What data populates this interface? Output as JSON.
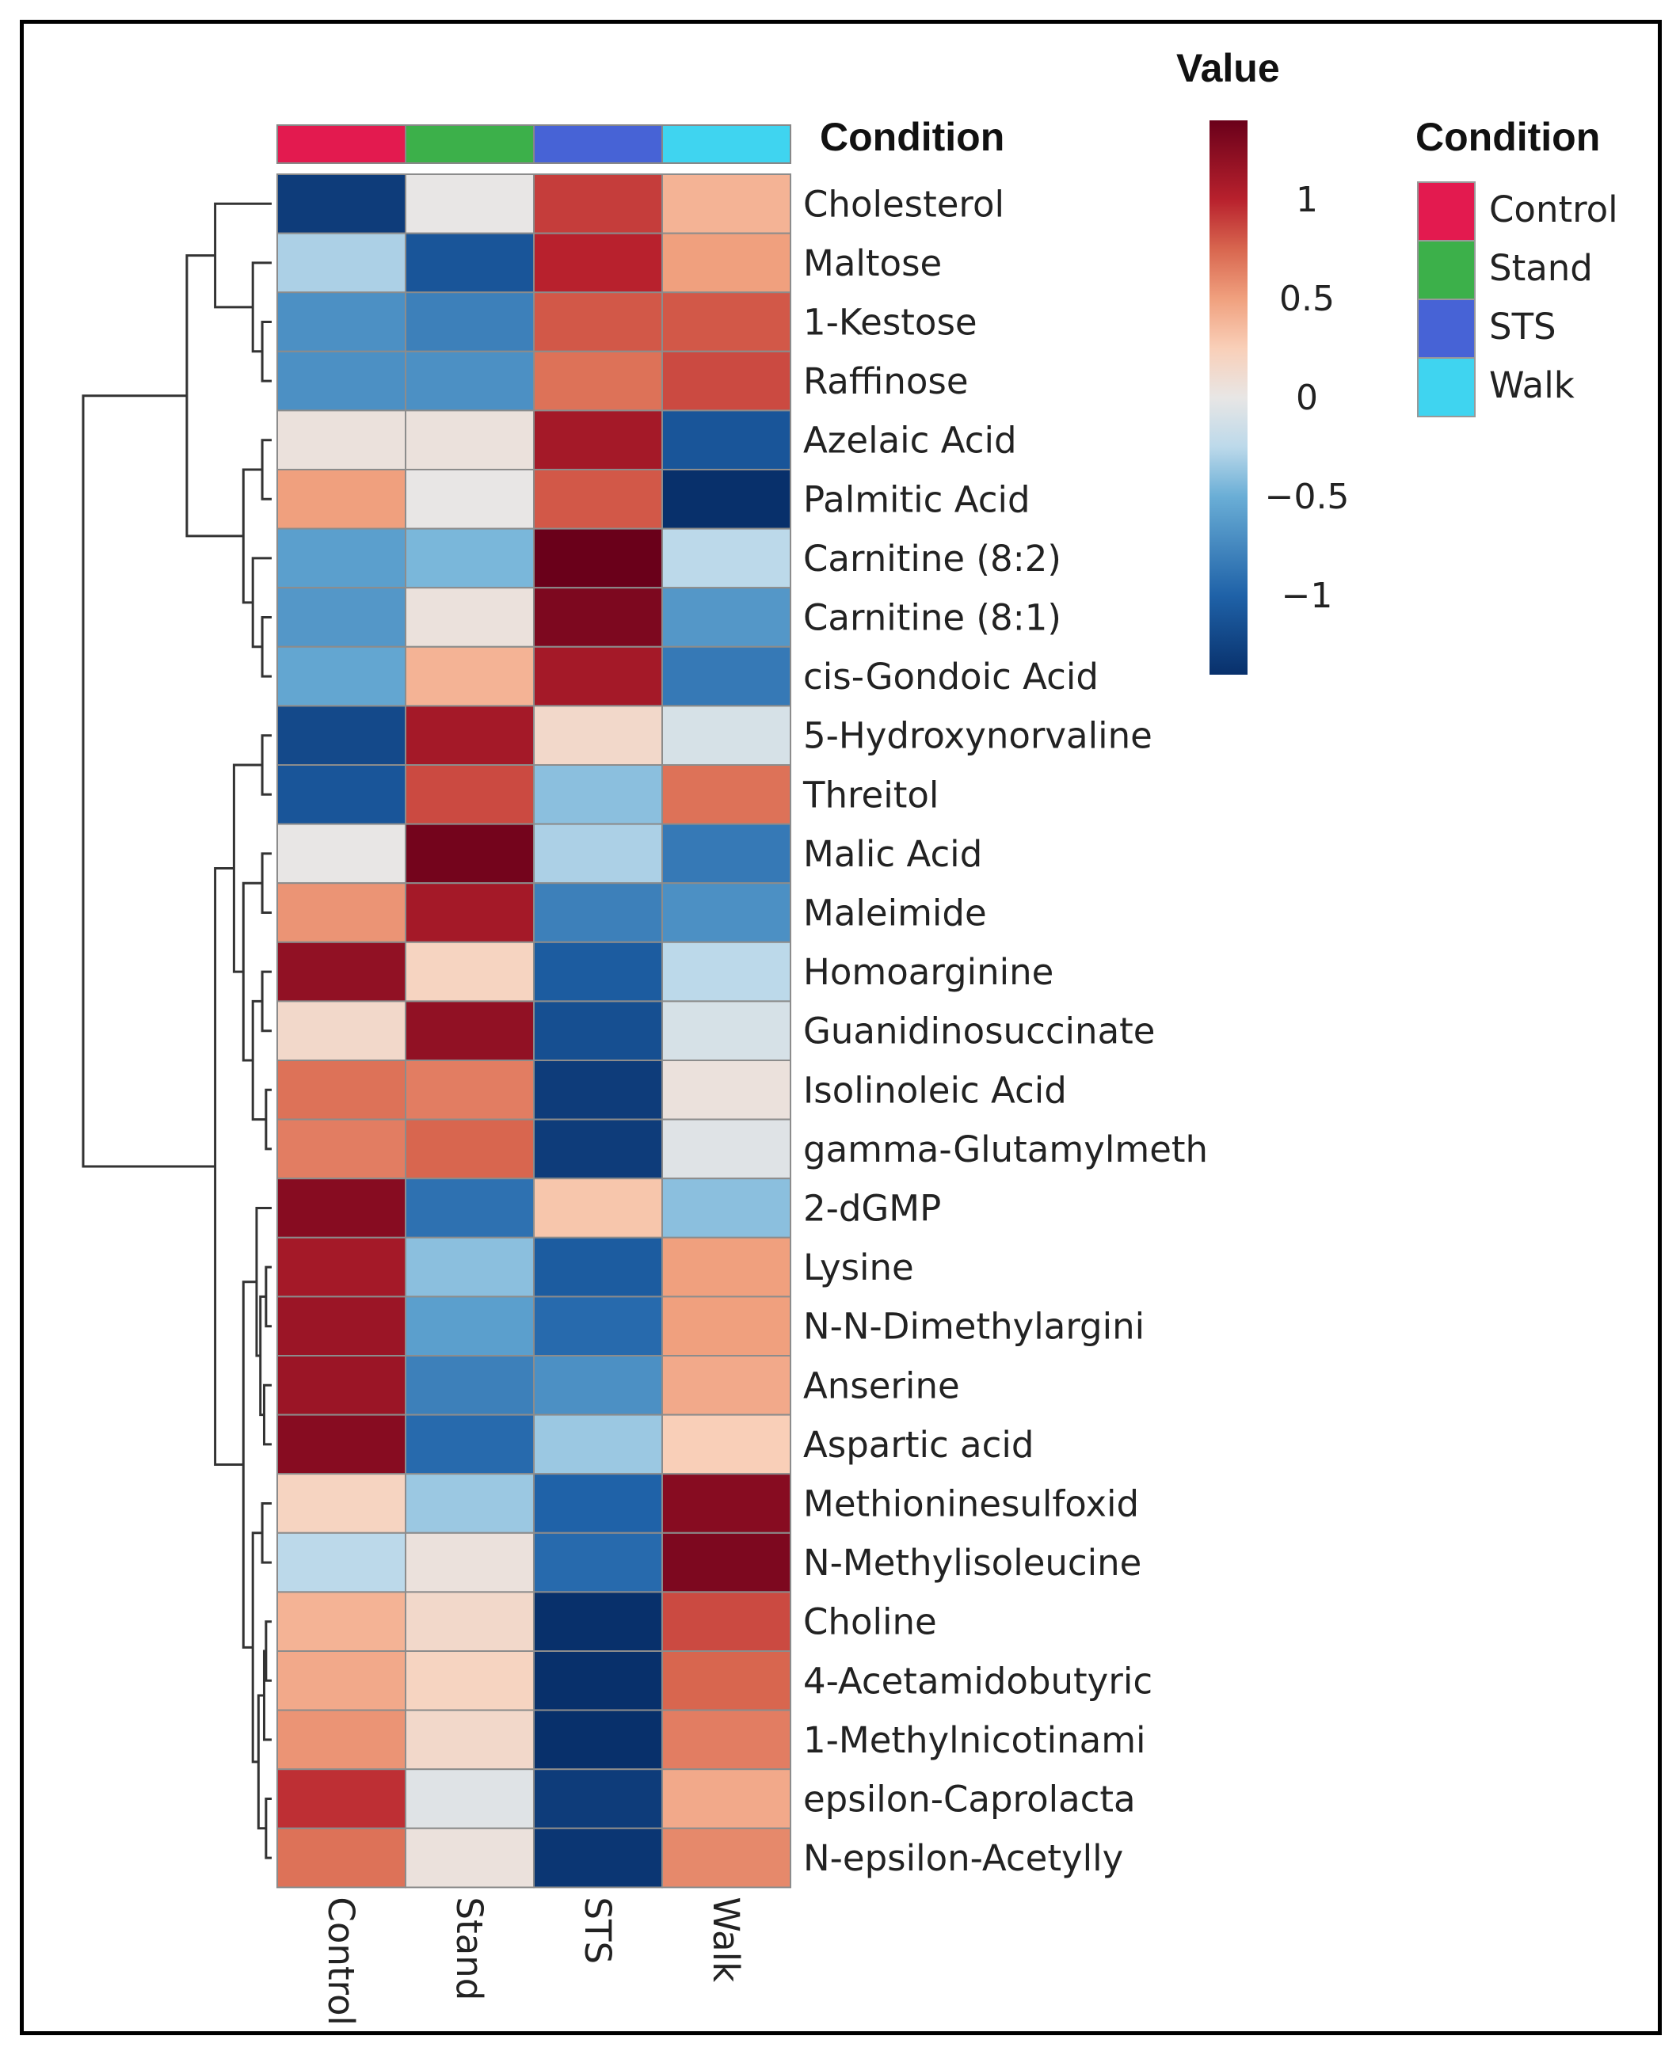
{
  "chart_data": {
    "type": "heatmap",
    "columns": [
      "Control",
      "Stand",
      "STS",
      "Walk"
    ],
    "annotation_title": "Condition",
    "annotation_colors": {
      "Control": "#e31a4f",
      "Stand": "#3cb04a",
      "STS": "#4763d6",
      "Walk": "#3fd4f0"
    },
    "legend_title": "Value",
    "color_scale": {
      "min": -1.4,
      "max": 1.4,
      "stops": [
        {
          "v": -1.4,
          "c": "#08306b"
        },
        {
          "v": -1.0,
          "c": "#1f62a8"
        },
        {
          "v": -0.5,
          "c": "#6aaed6"
        },
        {
          "v": -0.25,
          "c": "#bcd9ea"
        },
        {
          "v": 0.0,
          "c": "#e8e6e5"
        },
        {
          "v": 0.25,
          "c": "#f9cfb8"
        },
        {
          "v": 0.5,
          "c": "#f0a07e"
        },
        {
          "v": 0.75,
          "c": "#d8664f"
        },
        {
          "v": 1.0,
          "c": "#b8212d"
        },
        {
          "v": 1.4,
          "c": "#6a001a"
        }
      ],
      "ticks": [
        {
          "v": 1.0,
          "label": "1"
        },
        {
          "v": 0.5,
          "label": "0.5"
        },
        {
          "v": 0.0,
          "label": "0"
        },
        {
          "v": -0.5,
          "label": "−0.5"
        },
        {
          "v": -1.0,
          "label": "−1"
        }
      ]
    },
    "rows": [
      {
        "name": "Cholesterol",
        "values": [
          -1.3,
          0.0,
          0.9,
          0.4
        ]
      },
      {
        "name": "Maltose",
        "values": [
          -0.3,
          -1.1,
          1.0,
          0.5
        ]
      },
      {
        "name": "1-Kestose",
        "values": [
          -0.7,
          -0.8,
          0.8,
          0.8
        ]
      },
      {
        "name": "Raffinose",
        "values": [
          -0.7,
          -0.7,
          0.7,
          0.85
        ]
      },
      {
        "name": "Azelaic Acid",
        "values": [
          0.05,
          0.05,
          1.1,
          -1.1
        ]
      },
      {
        "name": "Palmitic Acid",
        "values": [
          0.5,
          0.0,
          0.8,
          -1.4
        ]
      },
      {
        "name": "Carnitine (8:2)",
        "values": [
          -0.6,
          -0.45,
          1.4,
          -0.25
        ]
      },
      {
        "name": "Carnitine (8:1)",
        "values": [
          -0.65,
          0.05,
          1.3,
          -0.65
        ]
      },
      {
        "name": "cis-Gondoic Acid",
        "values": [
          -0.55,
          0.4,
          1.1,
          -0.85
        ]
      },
      {
        "name": "5-Hydroxynorvaline",
        "values": [
          -1.2,
          1.1,
          0.15,
          -0.1
        ]
      },
      {
        "name": "Threitol",
        "values": [
          -1.1,
          0.85,
          -0.4,
          0.7
        ]
      },
      {
        "name": "Malic Acid",
        "values": [
          0.0,
          1.35,
          -0.3,
          -0.85
        ]
      },
      {
        "name": "Maleimide",
        "values": [
          0.55,
          1.1,
          -0.8,
          -0.7
        ]
      },
      {
        "name": "Homoarginine",
        "values": [
          1.2,
          0.2,
          -1.05,
          -0.25
        ]
      },
      {
        "name": "Guanidinosuccinate",
        "values": [
          0.15,
          1.2,
          -1.15,
          -0.1
        ]
      },
      {
        "name": "Isolinoleic Acid",
        "values": [
          0.7,
          0.65,
          -1.3,
          0.05
        ]
      },
      {
        "name": "gamma-Glutamylmeth",
        "values": [
          0.65,
          0.75,
          -1.3,
          -0.05
        ]
      },
      {
        "name": "2-dGMP",
        "values": [
          1.25,
          -0.9,
          0.3,
          -0.4
        ]
      },
      {
        "name": "Lysine",
        "values": [
          1.1,
          -0.4,
          -1.05,
          0.5
        ]
      },
      {
        "name": "N-N-Dimethylargini",
        "values": [
          1.15,
          -0.6,
          -0.95,
          0.5
        ]
      },
      {
        "name": "Anserine",
        "values": [
          1.15,
          -0.8,
          -0.7,
          0.45
        ]
      },
      {
        "name": "Aspartic acid",
        "values": [
          1.25,
          -0.95,
          -0.35,
          0.25
        ]
      },
      {
        "name": "Methioninesulfoxid",
        "values": [
          0.2,
          -0.35,
          -1.0,
          1.25
        ]
      },
      {
        "name": "N-Methylisoleucine",
        "values": [
          -0.25,
          0.05,
          -0.95,
          1.3
        ]
      },
      {
        "name": "Choline",
        "values": [
          0.4,
          0.15,
          -1.4,
          0.85
        ]
      },
      {
        "name": "4-Acetamidobutyric",
        "values": [
          0.45,
          0.2,
          -1.45,
          0.75
        ]
      },
      {
        "name": "1-Methylnicotinami",
        "values": [
          0.55,
          0.15,
          -1.45,
          0.65
        ]
      },
      {
        "name": "epsilon-Caprolacta",
        "values": [
          0.95,
          -0.05,
          -1.3,
          0.45
        ]
      },
      {
        "name": "N-epsilon-Acetylly",
        "values": [
          0.7,
          0.05,
          -1.35,
          0.6
        ]
      }
    ],
    "dendrogram": {
      "merges": [
        {
          "id": "a",
          "left": "r2",
          "right": "r3",
          "height": 0.05
        },
        {
          "id": "b",
          "left": "r1",
          "right": "a",
          "height": 0.1
        },
        {
          "id": "c",
          "left": "r0",
          "right": "b",
          "height": 0.3
        },
        {
          "id": "d",
          "left": "r4",
          "right": "r5",
          "height": 0.05
        },
        {
          "id": "e",
          "left": "r7",
          "right": "r8",
          "height": 0.05
        },
        {
          "id": "f",
          "left": "r6",
          "right": "e",
          "height": 0.1
        },
        {
          "id": "g",
          "left": "d",
          "right": "f",
          "height": 0.15
        },
        {
          "id": "h",
          "left": "c",
          "right": "g",
          "height": 0.45
        },
        {
          "id": "i",
          "left": "r9",
          "right": "r10",
          "height": 0.05
        },
        {
          "id": "j",
          "left": "r11",
          "right": "r12",
          "height": 0.05
        },
        {
          "id": "k",
          "left": "r13",
          "right": "r14",
          "height": 0.05
        },
        {
          "id": "l",
          "left": "r15",
          "right": "r16",
          "height": 0.03
        },
        {
          "id": "m",
          "left": "k",
          "right": "l",
          "height": 0.1
        },
        {
          "id": "n",
          "left": "j",
          "right": "m",
          "height": 0.15
        },
        {
          "id": "o",
          "left": "i",
          "right": "n",
          "height": 0.2
        },
        {
          "id": "p",
          "left": "r18",
          "right": "r19",
          "height": 0.03
        },
        {
          "id": "q",
          "left": "r20",
          "right": "r21",
          "height": 0.04
        },
        {
          "id": "r",
          "left": "p",
          "right": "q",
          "height": 0.06
        },
        {
          "id": "s",
          "left": "r17",
          "right": "r",
          "height": 0.08
        },
        {
          "id": "t",
          "left": "r22",
          "right": "r23",
          "height": 0.05
        },
        {
          "id": "u",
          "left": "r24",
          "right": "r25",
          "height": 0.03
        },
        {
          "id": "v",
          "left": "u",
          "right": "r26",
          "height": 0.04
        },
        {
          "id": "w",
          "left": "r27",
          "right": "r28",
          "height": 0.03
        },
        {
          "id": "x",
          "left": "v",
          "right": "w",
          "height": 0.07
        },
        {
          "id": "y",
          "left": "t",
          "right": "x",
          "height": 0.1
        },
        {
          "id": "z",
          "left": "s",
          "right": "y",
          "height": 0.15
        },
        {
          "id": "aa",
          "left": "o",
          "right": "z",
          "height": 0.3
        },
        {
          "id": "root",
          "left": "h",
          "right": "aa",
          "height": 1.0
        }
      ]
    }
  }
}
